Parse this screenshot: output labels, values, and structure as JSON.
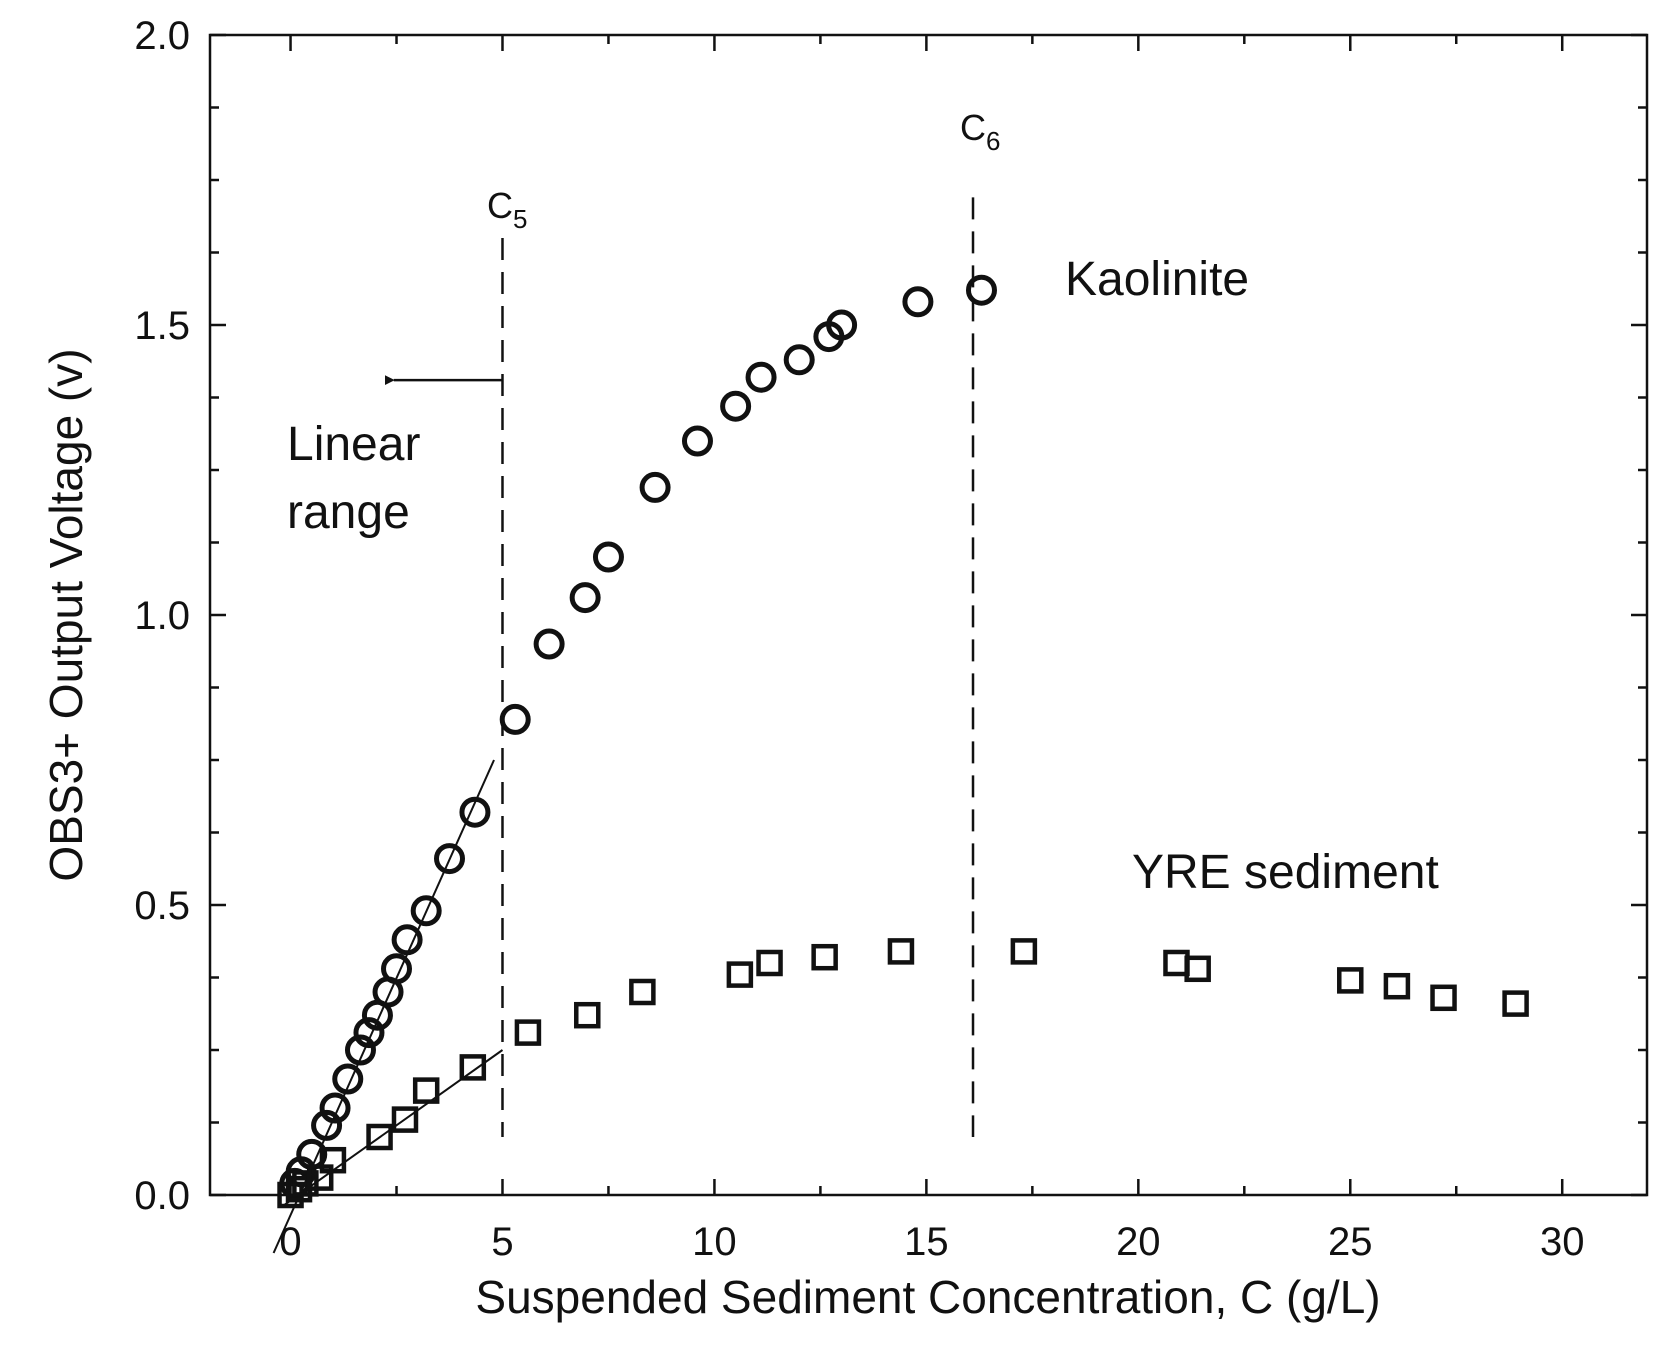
{
  "chart_data": {
    "type": "scatter",
    "xlabel": "Suspended Sediment Concentration, C (g/L)",
    "ylabel": "OBS3+ Output Voltage (v)",
    "xlim": [
      -1.9,
      32
    ],
    "ylim": [
      0,
      2
    ],
    "x_ticks": [
      "0",
      "5",
      "10",
      "15",
      "20",
      "25",
      "30"
    ],
    "x_tick_values": [
      0,
      5,
      10,
      15,
      20,
      25,
      30
    ],
    "y_ticks": [
      "0.0",
      "0.5",
      "1.0",
      "1.5",
      "2.0"
    ],
    "y_tick_values": [
      0,
      0.5,
      1.0,
      1.5,
      2.0
    ],
    "series": [
      {
        "name": "Kaolinite",
        "marker": "circle",
        "points": [
          [
            0.1,
            0.02
          ],
          [
            0.25,
            0.04
          ],
          [
            0.5,
            0.07
          ],
          [
            0.85,
            0.12
          ],
          [
            1.05,
            0.15
          ],
          [
            1.35,
            0.2
          ],
          [
            1.65,
            0.25
          ],
          [
            1.85,
            0.28
          ],
          [
            2.05,
            0.31
          ],
          [
            2.3,
            0.35
          ],
          [
            2.5,
            0.39
          ],
          [
            2.75,
            0.44
          ],
          [
            3.2,
            0.49
          ],
          [
            3.75,
            0.58
          ],
          [
            4.35,
            0.66
          ],
          [
            5.3,
            0.82
          ],
          [
            6.1,
            0.95
          ],
          [
            6.95,
            1.03
          ],
          [
            7.5,
            1.1
          ],
          [
            8.6,
            1.22
          ],
          [
            9.6,
            1.3
          ],
          [
            10.5,
            1.36
          ],
          [
            11.1,
            1.41
          ],
          [
            12.0,
            1.44
          ],
          [
            12.7,
            1.48
          ],
          [
            13.0,
            1.5
          ],
          [
            14.8,
            1.54
          ],
          [
            16.3,
            1.56
          ]
        ]
      },
      {
        "name": "YRE sediment",
        "marker": "square",
        "points": [
          [
            0.0,
            0.0
          ],
          [
            0.2,
            0.01
          ],
          [
            0.35,
            0.02
          ],
          [
            0.7,
            0.03
          ],
          [
            1.0,
            0.06
          ],
          [
            2.1,
            0.1
          ],
          [
            2.7,
            0.13
          ],
          [
            3.2,
            0.18
          ],
          [
            4.3,
            0.22
          ],
          [
            5.6,
            0.28
          ],
          [
            7.0,
            0.31
          ],
          [
            8.3,
            0.35
          ],
          [
            10.6,
            0.38
          ],
          [
            11.3,
            0.4
          ],
          [
            12.6,
            0.41
          ],
          [
            14.4,
            0.42
          ],
          [
            17.3,
            0.42
          ],
          [
            20.9,
            0.4
          ],
          [
            21.4,
            0.39
          ],
          [
            25.0,
            0.37
          ],
          [
            26.1,
            0.36
          ],
          [
            27.2,
            0.34
          ],
          [
            28.9,
            0.33
          ]
        ]
      }
    ],
    "fit_lines": [
      {
        "name": "Kaolinite linear fit",
        "x": [
          -0.4,
          4.8
        ],
        "y": [
          -0.1,
          0.75
        ]
      },
      {
        "name": "YRE sediment linear fit",
        "x": [
          -0.2,
          5.0
        ],
        "y": [
          -0.02,
          0.25
        ]
      }
    ],
    "reference_lines": [
      {
        "name": "C5",
        "letter": "C",
        "subscript": "5",
        "x": 5.0,
        "y_range": [
          0.1,
          1.65
        ]
      },
      {
        "name": "C6",
        "letter": "C",
        "subscript": "6",
        "x": 16.1,
        "y_range": [
          0.1,
          1.72
        ]
      }
    ],
    "annotations": [
      {
        "name": "linear-range",
        "lines": [
          "Linear",
          "range"
        ],
        "arrow_from_x": 5.0,
        "arrow_to_x": 2.2,
        "arrow_y": 1.405
      },
      {
        "name": "kaolinite-label",
        "text": "Kaolinite"
      },
      {
        "name": "yre-label",
        "text": "YRE sediment"
      }
    ]
  }
}
